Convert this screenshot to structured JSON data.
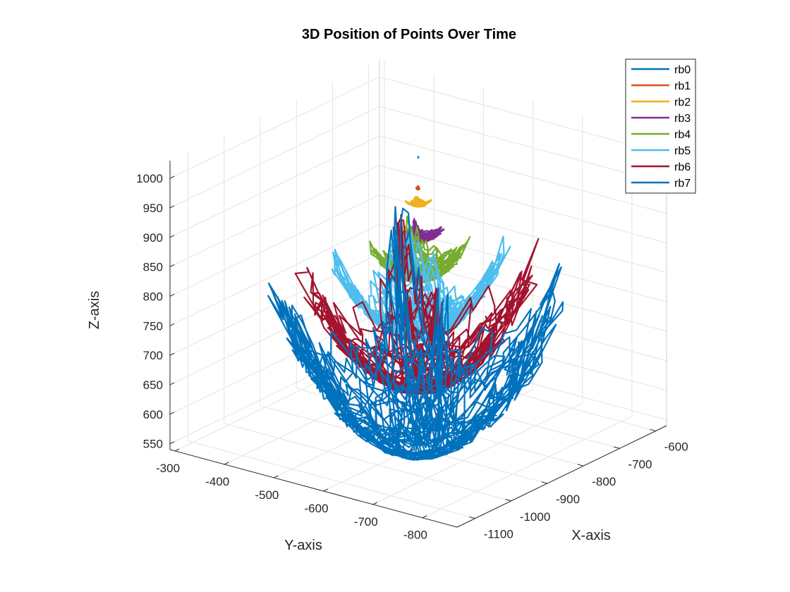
{
  "chart_data": {
    "type": "line",
    "title": "3D Position of Points Over Time",
    "xlabel": "X-axis",
    "ylabel": "Y-axis",
    "zlabel": "Z-axis",
    "xlim": [
      -1150,
      -570
    ],
    "ylim": [
      -870,
      -290
    ],
    "zlim": [
      540,
      1030
    ],
    "x_ticks": [
      "-1100",
      "-1000",
      "-900",
      "-800",
      "-700",
      "-600"
    ],
    "y_ticks": [
      "-300",
      "-400",
      "-500",
      "-600",
      "-700",
      "-800"
    ],
    "z_ticks": [
      "550",
      "600",
      "650",
      "700",
      "750",
      "800",
      "850",
      "900",
      "950",
      "1000"
    ],
    "grid": true,
    "legend_position": "top-right",
    "series": [
      {
        "name": "rb0",
        "color": "#0072BD",
        "center": [
          -860,
          -580
        ],
        "z_base": 1015,
        "rx": 0.6,
        "ry": 0.6,
        "sag": 0.5
      },
      {
        "name": "rb1",
        "color": "#D95319",
        "center": [
          -860,
          -580
        ],
        "z_base": 962,
        "rx": 4,
        "ry": 4,
        "sag": 1
      },
      {
        "name": "rb2",
        "color": "#EDB120",
        "center": [
          -860,
          -580
        ],
        "z_base": 936,
        "rx": 14,
        "ry": 14,
        "sag": 2
      },
      {
        "name": "rb3",
        "color": "#7E2F8E",
        "center": [
          -860,
          -580
        ],
        "z_base": 880,
        "rx": 28,
        "ry": 28,
        "sag": 5
      },
      {
        "name": "rb4",
        "color": "#77AC30",
        "center": [
          -860,
          -580
        ],
        "z_base": 825,
        "rx": 55,
        "ry": 55,
        "sag": 18
      },
      {
        "name": "rb5",
        "color": "#4DBEEE",
        "center": [
          -860,
          -580
        ],
        "z_base": 750,
        "rx": 95,
        "ry": 95,
        "sag": 40
      },
      {
        "name": "rb6",
        "color": "#A2142F",
        "center": [
          -860,
          -580
        ],
        "z_base": 680,
        "rx": 130,
        "ry": 130,
        "sag": 60
      },
      {
        "name": "rb7",
        "color": "#0072BD",
        "center": [
          -860,
          -580
        ],
        "z_base": 600,
        "rx": 170,
        "ry": 170,
        "sag": 90
      }
    ]
  }
}
